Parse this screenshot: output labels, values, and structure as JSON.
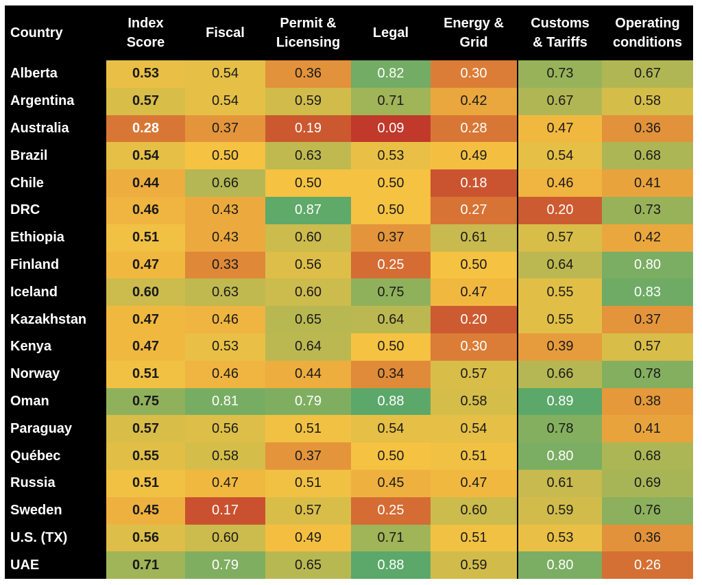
{
  "chart_data": {
    "type": "heatmap",
    "title": "",
    "columns": [
      "Country",
      "Index Score",
      "Fiscal",
      "Permit & Licensing",
      "Legal",
      "Energy & Grid",
      "Customs & Tariffs",
      "Operating conditions"
    ],
    "header_lines": [
      [
        "Country"
      ],
      [
        "Index",
        "Score"
      ],
      [
        "Fiscal"
      ],
      [
        "Permit &",
        "Licensing"
      ],
      [
        "Legal"
      ],
      [
        "Energy &",
        "Grid"
      ],
      [
        "Customs",
        "& Tariffs"
      ],
      [
        "Operating",
        "conditions"
      ]
    ],
    "color_scale": {
      "low": "#c0392b",
      "mid": "#f5c242",
      "high": "#5ba86a"
    },
    "rows": [
      {
        "country": "Alberta",
        "values": [
          0.53,
          0.54,
          0.36,
          0.82,
          0.3,
          0.73,
          0.67
        ]
      },
      {
        "country": "Argentina",
        "values": [
          0.57,
          0.54,
          0.59,
          0.71,
          0.42,
          0.67,
          0.58
        ]
      },
      {
        "country": "Australia",
        "values": [
          0.28,
          0.37,
          0.19,
          0.09,
          0.28,
          0.47,
          0.36
        ]
      },
      {
        "country": "Brazil",
        "values": [
          0.54,
          0.5,
          0.63,
          0.53,
          0.49,
          0.54,
          0.68
        ]
      },
      {
        "country": "Chile",
        "values": [
          0.44,
          0.66,
          0.5,
          0.5,
          0.18,
          0.46,
          0.41
        ]
      },
      {
        "country": "DRC",
        "values": [
          0.46,
          0.43,
          0.87,
          0.5,
          0.27,
          0.2,
          0.73
        ]
      },
      {
        "country": "Ethiopia",
        "values": [
          0.51,
          0.43,
          0.6,
          0.37,
          0.61,
          0.57,
          0.42
        ]
      },
      {
        "country": "Finland",
        "values": [
          0.47,
          0.33,
          0.56,
          0.25,
          0.5,
          0.64,
          0.8
        ]
      },
      {
        "country": "Iceland",
        "values": [
          0.6,
          0.63,
          0.6,
          0.75,
          0.47,
          0.55,
          0.83
        ]
      },
      {
        "country": "Kazakhstan",
        "values": [
          0.47,
          0.46,
          0.65,
          0.64,
          0.2,
          0.55,
          0.37
        ]
      },
      {
        "country": "Kenya",
        "values": [
          0.47,
          0.53,
          0.64,
          0.5,
          0.3,
          0.39,
          0.57
        ]
      },
      {
        "country": "Norway",
        "values": [
          0.51,
          0.46,
          0.44,
          0.34,
          0.57,
          0.66,
          0.78
        ]
      },
      {
        "country": "Oman",
        "values": [
          0.75,
          0.81,
          0.79,
          0.88,
          0.58,
          0.89,
          0.38
        ]
      },
      {
        "country": "Paraguay",
        "values": [
          0.57,
          0.56,
          0.51,
          0.54,
          0.54,
          0.78,
          0.41
        ]
      },
      {
        "country": "Québec",
        "values": [
          0.55,
          0.58,
          0.37,
          0.5,
          0.51,
          0.8,
          0.68
        ]
      },
      {
        "country": "Russia",
        "values": [
          0.51,
          0.47,
          0.51,
          0.45,
          0.47,
          0.61,
          0.69
        ]
      },
      {
        "country": "Sweden",
        "values": [
          0.45,
          0.17,
          0.57,
          0.25,
          0.6,
          0.59,
          0.76
        ]
      },
      {
        "country": "U.S. (TX)",
        "values": [
          0.56,
          0.6,
          0.49,
          0.71,
          0.51,
          0.53,
          0.36
        ]
      },
      {
        "country": "UAE",
        "values": [
          0.71,
          0.79,
          0.65,
          0.88,
          0.59,
          0.8,
          0.26
        ]
      }
    ]
  }
}
